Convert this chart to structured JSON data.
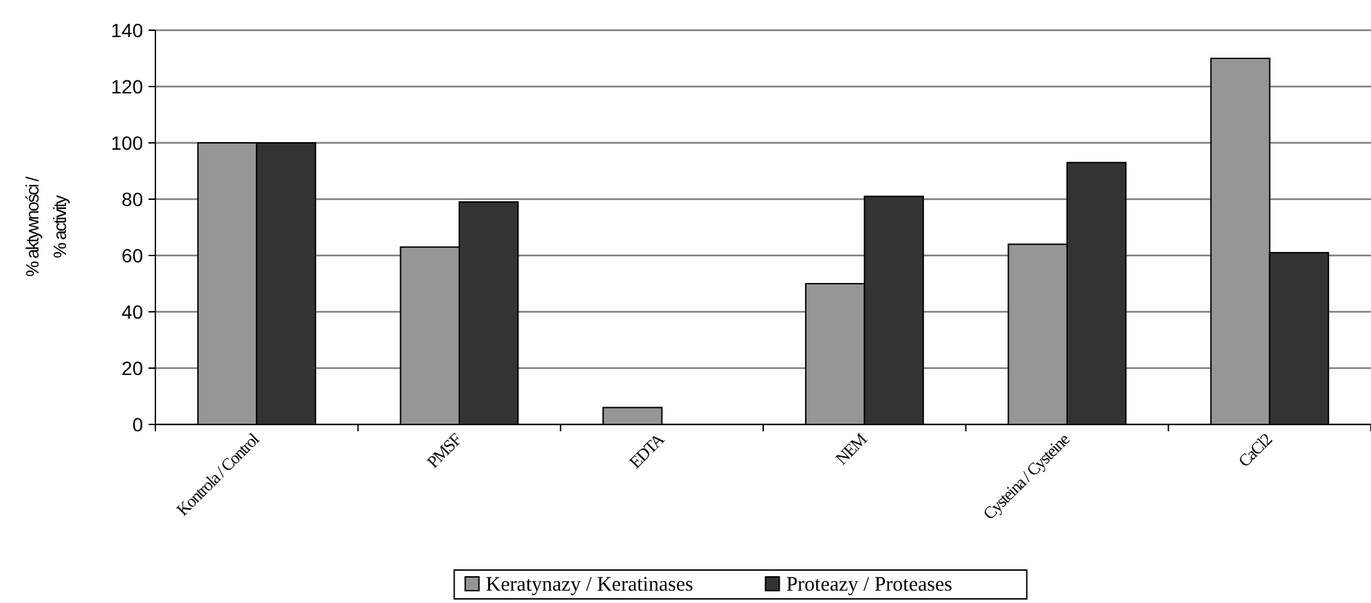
{
  "chart_data": {
    "type": "bar",
    "ylabel": "% aktywności /\n% activity",
    "categories": [
      "Kontrola / Control",
      "PMSF",
      "EDTA",
      "NEM",
      "Cysteina / Cysteine",
      "CaCl2"
    ],
    "series": [
      {
        "name": "Keratynazy / Keratinases",
        "color": "#969696",
        "values": [
          100,
          63,
          6,
          50,
          64,
          130
        ]
      },
      {
        "name": "Proteazy / Proteases",
        "color": "#333333",
        "values": [
          100,
          79,
          0,
          81,
          93,
          61
        ]
      }
    ],
    "ylim": [
      0,
      140
    ],
    "yticks": [
      0,
      20,
      40,
      60,
      80,
      100,
      120,
      140
    ],
    "grid": "y",
    "legend": "bottom"
  }
}
